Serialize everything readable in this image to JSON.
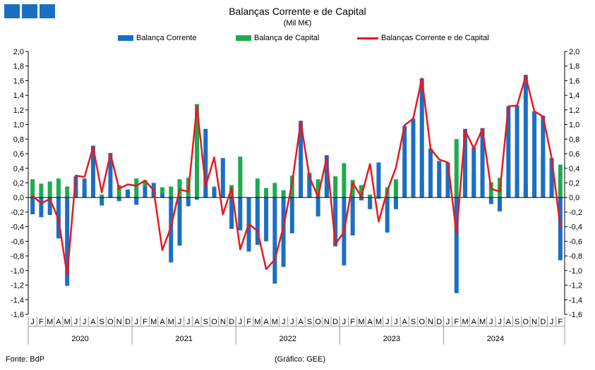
{
  "header": {
    "title": "Balanças Corrente e de Capital",
    "subtitle": "(Mil M€)"
  },
  "logo_color": "#1b6fc2",
  "footer": {
    "source": "Fonte: BdP",
    "credit": "(Gráfico: GEE)"
  },
  "chart_data": {
    "type": "bar",
    "title": "Balanças Corrente e de Capital",
    "subtitle": "(Mil M€)",
    "ylim": [
      -1.6,
      2.0
    ],
    "ytick_step": 0.2,
    "ytick_labels": [
      "2,0",
      "1,8",
      "1,6",
      "1,4",
      "1,2",
      "1,0",
      "0,8",
      "0,6",
      "0,4",
      "0,2",
      "0,0",
      "-0,2",
      "-0,4",
      "-0,6",
      "-0,8",
      "-1,0",
      "-1,2",
      "-1,4",
      "-1,6"
    ],
    "y_axis_both_sides": true,
    "grid": false,
    "legend_position": "top",
    "month_labels": [
      "J",
      "F",
      "M",
      "A",
      "M",
      "J",
      "J",
      "A",
      "S",
      "O",
      "N",
      "D"
    ],
    "years": [
      "2020",
      "2021",
      "2022",
      "2023",
      "2024"
    ],
    "series": [
      {
        "name": "Balança Corrente",
        "kind": "bar",
        "color": "#1b6fc2",
        "values": [
          -0.23,
          -0.27,
          -0.24,
          -0.56,
          -1.21,
          0.29,
          0.26,
          0.71,
          -0.11,
          0.61,
          -0.05,
          0.11,
          -0.1,
          0.15,
          0.2,
          0.05,
          -0.89,
          -0.66,
          -0.12,
          -0.03,
          0.94,
          0.13,
          0.54,
          -0.43,
          -0.45,
          -0.74,
          -0.65,
          -0.6,
          -1.18,
          -0.95,
          -0.49,
          1.05,
          0.31,
          -0.26,
          0.58,
          -0.67,
          -0.93,
          -0.52,
          -0.04,
          -0.16,
          0.48,
          -0.48,
          -0.16,
          0.98,
          1.08,
          1.63,
          0.67,
          0.5,
          0.48,
          -1.31,
          0.94,
          0.68,
          0.95,
          -0.09,
          -0.19,
          1.25,
          1.26,
          1.68,
          1.18,
          1.12,
          0.54,
          -0.86
        ]
      },
      {
        "name": "Balança de Capital",
        "kind": "bar",
        "color": "#1faa4f",
        "values": [
          0.25,
          0.19,
          0.22,
          0.26,
          0.15,
          0.04,
          0.12,
          0.12,
          0.04,
          0.12,
          0.17,
          0.07,
          0.26,
          0.24,
          0.12,
          0.14,
          0.15,
          0.25,
          0.27,
          1.28,
          0.15,
          0.15,
          0.01,
          0.17,
          0.56,
          -0.01,
          0.26,
          0.13,
          0.2,
          0.1,
          0.3,
          0.06,
          0.34,
          0.25,
          0.14,
          0.29,
          0.47,
          0.24,
          0.17,
          0.04,
          -0.02,
          0.14,
          0.25,
          0.54,
          0.26,
          0.22,
          0.3,
          0.34,
          0.28,
          0.8,
          0.2,
          0.33,
          0.23,
          0.21,
          0.27,
          0.19,
          0.23,
          0.17,
          0.13,
          0.58,
          0.19,
          0.45
        ]
      },
      {
        "name": "Balanças Corrente e de Capital",
        "kind": "line",
        "color": "#e8191f",
        "values": [
          0.02,
          -0.08,
          -0.02,
          -0.3,
          -1.06,
          0.3,
          0.28,
          0.69,
          0.07,
          0.6,
          0.12,
          0.18,
          0.16,
          0.23,
          0.1,
          -0.72,
          -0.4,
          0.11,
          0.08,
          1.25,
          0.15,
          0.55,
          -0.23,
          0.13,
          -0.71,
          -0.36,
          -0.46,
          -0.98,
          -0.85,
          -0.4,
          0.2,
          1.04,
          0.28,
          0.01,
          0.55,
          -0.64,
          -0.47,
          0.2,
          0.01,
          0.46,
          -0.33,
          0.09,
          0.41,
          0.99,
          1.08,
          1.63,
          0.67,
          0.52,
          0.48,
          -0.5,
          0.92,
          0.67,
          0.94,
          0.12,
          0.08,
          1.25,
          1.26,
          1.66,
          1.18,
          1.11,
          0.54,
          -0.4
        ]
      }
    ]
  }
}
